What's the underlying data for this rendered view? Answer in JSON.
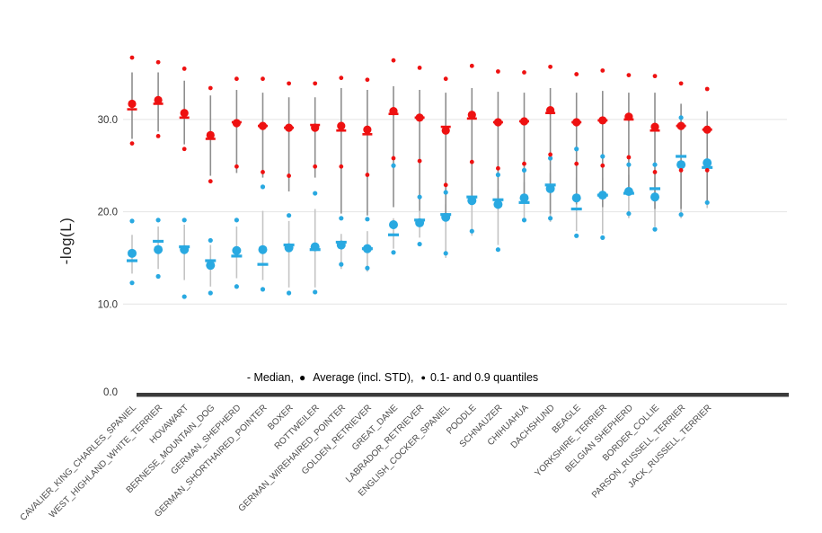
{
  "chart_data": {
    "type": "scatter",
    "title": "",
    "ylabel": "-log(L)",
    "grid": true,
    "ylim": [
      0,
      43
    ],
    "y_ticks": [
      {
        "label": "0.0",
        "value": 0
      },
      {
        "label": "10.0",
        "value": 10
      },
      {
        "label": "20.0",
        "value": 20
      },
      {
        "label": "30.0",
        "value": 30
      }
    ],
    "legend": {
      "median_part": "- Median,",
      "bullet": "●",
      "avg_part": "Average (incl. STD),",
      "q_part": "0.1- and 0.9 quantiles"
    },
    "colors": {
      "red_series": "#ee1111",
      "blue_series": "#29a9e1",
      "red_whisker": "#8e8e8e",
      "blue_whisker": "#c4c4c4",
      "gridline": "#e4e4e4",
      "axis_bar": "#3b3b3b",
      "tick_text": "#333333",
      "x_label_text": "#4a4a4a"
    },
    "series_meaning": {
      "avg": "Average (incl. STD)",
      "med": "Median",
      "q_hi": "0.9 quantile",
      "q_lo": "0.1 quantile",
      "w_hi": "average + STD",
      "w_lo": "average - STD"
    },
    "breeds": [
      {
        "name": "CAVALIER_KING_CHARLES_SPANIEL",
        "red": {
          "avg": 31.7,
          "med": 31.1,
          "q_hi": 36.7,
          "q_lo": 27.4,
          "w_hi": 35.1,
          "w_lo": 27.9
        },
        "blue": {
          "avg": 15.5,
          "med": 14.7,
          "q_hi": 19.0,
          "q_lo": 12.3,
          "w_hi": 17.5,
          "w_lo": 13.3
        }
      },
      {
        "name": "WEST_HIGHLAND_WHITE_TERRIER",
        "red": {
          "avg": 32.1,
          "med": 31.7,
          "q_hi": 36.2,
          "q_lo": 28.2,
          "w_hi": 35.1,
          "w_lo": 28.7
        },
        "blue": {
          "avg": 15.9,
          "med": 16.8,
          "q_hi": 19.1,
          "q_lo": 13.0,
          "w_hi": 18.4,
          "w_lo": 13.8
        }
      },
      {
        "name": "HOVAWART",
        "red": {
          "avg": 30.7,
          "med": 30.2,
          "q_hi": 35.5,
          "q_lo": 26.8,
          "w_hi": 34.2,
          "w_lo": 27.3
        },
        "blue": {
          "avg": 15.9,
          "med": 16.2,
          "q_hi": 19.1,
          "q_lo": 10.8,
          "w_hi": 18.6,
          "w_lo": 12.6
        }
      },
      {
        "name": "BERNESE_MOUNTAIN_DOG",
        "red": {
          "avg": 28.3,
          "med": 27.9,
          "q_hi": 33.4,
          "q_lo": 23.3,
          "w_hi": 32.6,
          "w_lo": 23.9
        },
        "blue": {
          "avg": 14.2,
          "med": 14.7,
          "q_hi": 16.9,
          "q_lo": 11.2,
          "w_hi": 16.4,
          "w_lo": 11.9
        }
      },
      {
        "name": "GERMAN_SHEPHERD",
        "red": {
          "avg": 29.6,
          "med": 29.7,
          "q_hi": 34.4,
          "q_lo": 24.9,
          "w_hi": 33.2,
          "w_lo": 24.2
        },
        "blue": {
          "avg": 15.8,
          "med": 15.2,
          "q_hi": 19.1,
          "q_lo": 11.9,
          "w_hi": 18.4,
          "w_lo": 12.8
        }
      },
      {
        "name": "GERMAN_SHORTHAIRED_POINTER",
        "red": {
          "avg": 29.3,
          "med": 29.3,
          "q_hi": 34.4,
          "q_lo": 24.3,
          "w_hi": 32.9,
          "w_lo": 23.7
        },
        "blue": {
          "avg": 15.9,
          "med": 14.3,
          "q_hi": 22.7,
          "q_lo": 11.6,
          "w_hi": 20.1,
          "w_lo": 12.6
        }
      },
      {
        "name": "BOXER",
        "red": {
          "avg": 29.1,
          "med": 29.1,
          "q_hi": 33.9,
          "q_lo": 23.9,
          "w_hi": 32.4,
          "w_lo": 22.2
        },
        "blue": {
          "avg": 16.1,
          "med": 16.4,
          "q_hi": 19.6,
          "q_lo": 11.2,
          "w_hi": 19.0,
          "w_lo": 11.8
        }
      },
      {
        "name": "ROTTWEILER",
        "red": {
          "avg": 29.1,
          "med": 29.4,
          "q_hi": 33.9,
          "q_lo": 24.9,
          "w_hi": 32.4,
          "w_lo": 23.7
        },
        "blue": {
          "avg": 16.2,
          "med": 15.9,
          "q_hi": 22.0,
          "q_lo": 11.3,
          "w_hi": 20.3,
          "w_lo": 11.8
        }
      },
      {
        "name": "GERMAN_WIREHAIRED_POINTER",
        "red": {
          "avg": 29.3,
          "med": 28.8,
          "q_hi": 34.5,
          "q_lo": 24.9,
          "w_hi": 33.4,
          "w_lo": 19.8
        },
        "blue": {
          "avg": 16.4,
          "med": 16.7,
          "q_hi": 19.3,
          "q_lo": 14.3,
          "w_hi": 17.6,
          "w_lo": 13.8
        }
      },
      {
        "name": "GOLDEN_RETRIEVER",
        "red": {
          "avg": 28.9,
          "med": 28.4,
          "q_hi": 34.3,
          "q_lo": 24.0,
          "w_hi": 33.2,
          "w_lo": 19.6
        },
        "blue": {
          "avg": 16.0,
          "med": 16.0,
          "q_hi": 19.2,
          "q_lo": 13.9,
          "w_hi": 17.9,
          "w_lo": 13.5
        }
      },
      {
        "name": "GREAT_DANE",
        "red": {
          "avg": 30.9,
          "med": 30.6,
          "q_hi": 36.4,
          "q_lo": 25.8,
          "w_hi": 33.6,
          "w_lo": 20.5
        },
        "blue": {
          "avg": 18.6,
          "med": 17.5,
          "q_hi": 25.0,
          "q_lo": 15.6,
          "w_hi": 19.3,
          "w_lo": 16.0
        }
      },
      {
        "name": "LABRADOR_RETRIEVER",
        "red": {
          "avg": 30.2,
          "med": 30.2,
          "q_hi": 35.6,
          "q_lo": 25.5,
          "w_hi": 33.2,
          "w_lo": 20.1
        },
        "blue": {
          "avg": 18.8,
          "med": 19.1,
          "q_hi": 21.6,
          "q_lo": 16.5,
          "w_hi": 20.1,
          "w_lo": 17.2
        }
      },
      {
        "name": "ENGLISH_COCKER_SPANIEL",
        "red": {
          "avg": 28.8,
          "med": 29.2,
          "q_hi": 34.4,
          "q_lo": 22.9,
          "w_hi": 32.9,
          "w_lo": 19.3
        },
        "blue": {
          "avg": 19.4,
          "med": 19.7,
          "q_hi": 22.1,
          "q_lo": 15.5,
          "w_hi": 20.8,
          "w_lo": 15.0
        }
      },
      {
        "name": "POODLE",
        "red": {
          "avg": 30.5,
          "med": 30.1,
          "q_hi": 35.8,
          "q_lo": 25.4,
          "w_hi": 33.4,
          "w_lo": 20.8
        },
        "blue": {
          "avg": 21.2,
          "med": 21.6,
          "q_hi": null,
          "q_lo": 17.9,
          "w_hi": 22.7,
          "w_lo": 17.4
        }
      },
      {
        "name": "SCHNAUZER",
        "red": {
          "avg": 29.7,
          "med": 29.7,
          "q_hi": 35.2,
          "q_lo": 24.7,
          "w_hi": 33.0,
          "w_lo": 20.3
        },
        "blue": {
          "avg": 20.8,
          "med": 21.3,
          "q_hi": 24.0,
          "q_lo": 15.9,
          "w_hi": 22.4,
          "w_lo": 16.4
        }
      },
      {
        "name": "CHIHUAHUA",
        "red": {
          "avg": 29.8,
          "med": 29.8,
          "q_hi": 35.1,
          "q_lo": 25.2,
          "w_hi": 32.9,
          "w_lo": 21.3
        },
        "blue": {
          "avg": 21.5,
          "med": 21.0,
          "q_hi": 24.5,
          "q_lo": 19.1,
          "w_hi": 23.2,
          "w_lo": 18.9
        }
      },
      {
        "name": "DACHSHUND",
        "red": {
          "avg": 31.0,
          "med": 30.7,
          "q_hi": 35.7,
          "q_lo": 26.2,
          "w_hi": 33.4,
          "w_lo": 19.8
        },
        "blue": {
          "avg": 22.5,
          "med": 22.9,
          "q_hi": 25.8,
          "q_lo": 19.3,
          "w_hi": 24.2,
          "w_lo": 18.9
        }
      },
      {
        "name": "BEAGLE",
        "red": {
          "avg": 29.7,
          "med": 29.7,
          "q_hi": 34.9,
          "q_lo": 25.2,
          "w_hi": 32.9,
          "w_lo": 20.8
        },
        "blue": {
          "avg": 21.5,
          "med": 20.3,
          "q_hi": 26.8,
          "q_lo": 17.4,
          "w_hi": 23.7,
          "w_lo": 17.9
        }
      },
      {
        "name": "YORKSHIRE_TERRIER",
        "red": {
          "avg": 29.9,
          "med": 29.9,
          "q_hi": 35.3,
          "q_lo": 25.0,
          "w_hi": 33.1,
          "w_lo": 20.5
        },
        "blue": {
          "avg": 21.8,
          "med": 21.8,
          "q_hi": 26.0,
          "q_lo": 17.2,
          "w_hi": 23.7,
          "w_lo": 17.6
        }
      },
      {
        "name": "BELGIAN SHEPHERD",
        "red": {
          "avg": 30.3,
          "med": 30.0,
          "q_hi": 34.8,
          "q_lo": 25.9,
          "w_hi": 32.9,
          "w_lo": 21.8
        },
        "blue": {
          "avg": 22.2,
          "med": 22.0,
          "q_hi": 25.1,
          "q_lo": 19.8,
          "w_hi": 24.0,
          "w_lo": 19.3
        }
      },
      {
        "name": "BORDER_COLLIE",
        "red": {
          "avg": 29.2,
          "med": 28.8,
          "q_hi": 34.7,
          "q_lo": 24.3,
          "w_hi": 32.9,
          "w_lo": 20.3
        },
        "blue": {
          "avg": 21.6,
          "med": 22.5,
          "q_hi": 25.1,
          "q_lo": 18.1,
          "w_hi": 23.7,
          "w_lo": 18.4
        }
      },
      {
        "name": "PARSON_RUSSELL_TERRIER",
        "red": {
          "avg": 29.3,
          "med": 29.3,
          "q_hi": 33.9,
          "q_lo": 24.5,
          "w_hi": 31.7,
          "w_lo": 20.3
        },
        "blue": {
          "avg": 25.1,
          "med": 26.0,
          "q_hi": 30.2,
          "q_lo": 19.7,
          "w_hi": 25.6,
          "w_lo": 19.3
        }
      },
      {
        "name": "JACK_RUSSELL_TERRIER",
        "red": {
          "avg": 28.9,
          "med": 28.9,
          "q_hi": 33.3,
          "q_lo": 24.5,
          "w_hi": 30.9,
          "w_lo": 20.8
        },
        "blue": {
          "avg": 25.3,
          "med": 24.8,
          "q_hi": null,
          "q_lo": 21.0,
          "w_hi": 26.0,
          "w_lo": 20.4
        }
      }
    ]
  }
}
